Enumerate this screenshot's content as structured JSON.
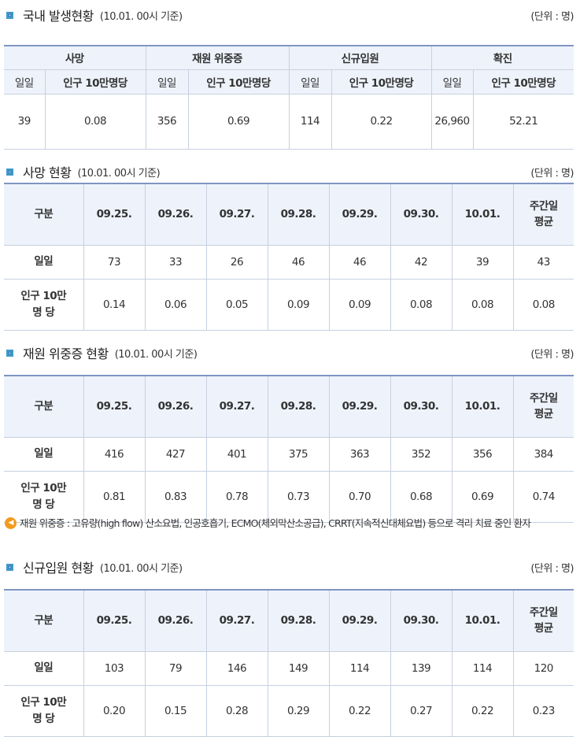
{
  "domestic": {
    "title": "국내 발생현황",
    "basis": "(10.01. 00시 기준)",
    "unit": "(단위 : 명)",
    "groups": [
      "사망",
      "재원 위중증",
      "신규입원",
      "확진"
    ],
    "sub_daily": "일일",
    "sub_per": "인구 10만명당",
    "values": [
      [
        "39",
        "0.08"
      ],
      [
        "356",
        "0.69"
      ],
      [
        "114",
        "0.22"
      ],
      [
        "26,960",
        "52.21"
      ]
    ]
  },
  "tables": [
    {
      "title": "사망 현황",
      "basis": "(10.01. 00시 기준)",
      "unit": "(단위 : 명)",
      "headers": [
        "구분",
        "09.25.",
        "09.26.",
        "09.27.",
        "09.28.",
        "09.29.",
        "09.30.",
        "10.01.",
        "주간일\n평균"
      ],
      "rows": [
        [
          "일일",
          "73",
          "33",
          "26",
          "46",
          "46",
          "42",
          "39",
          "43"
        ],
        [
          "인구 10만\n명 당",
          "0.14",
          "0.06",
          "0.05",
          "0.09",
          "0.09",
          "0.08",
          "0.08",
          "0.08"
        ]
      ]
    },
    {
      "title": "재원 위중증 현황",
      "basis": "(10.01. 00시 기준)",
      "unit": "(단위 : 명)",
      "headers": [
        "구분",
        "09.25.",
        "09.26.",
        "09.27.",
        "09.28.",
        "09.29.",
        "09.30.",
        "10.01.",
        "주간일\n평균"
      ],
      "rows": [
        [
          "일일",
          "416",
          "427",
          "401",
          "375",
          "363",
          "352",
          "356",
          "384"
        ],
        [
          "인구 10만\n명 당",
          "0.81",
          "0.83",
          "0.78",
          "0.73",
          "0.70",
          "0.68",
          "0.69",
          "0.74"
        ]
      ]
    },
    {
      "title": "신규입원 현황",
      "basis": "(10.01. 00시 기준)",
      "unit": "(단위 : 명)",
      "headers": [
        "구분",
        "09.25.",
        "09.26.",
        "09.27.",
        "09.28.",
        "09.29.",
        "09.30.",
        "10.01.",
        "주간일\n평균"
      ],
      "rows": [
        [
          "일일",
          "103",
          "79",
          "146",
          "149",
          "114",
          "139",
          "114",
          "120"
        ],
        [
          "인구 10만\n명 당",
          "0.20",
          "0.15",
          "0.28",
          "0.29",
          "0.22",
          "0.27",
          "0.22",
          "0.23"
        ]
      ]
    }
  ],
  "note": {
    "icon": "speaker-icon",
    "text": "재원 위중증 : 고유량(high flow) 산소요법, 인공호흡기, ECMO(체외막산소공급), CRRT(지속적신대체요법) 등으로 격리 치료 중인 환자"
  },
  "colors": {
    "accent": "#3f9ac9",
    "header_bg": "#eef3fb",
    "table_top": "#7f95c2",
    "note_icon": "#f39a1d"
  }
}
